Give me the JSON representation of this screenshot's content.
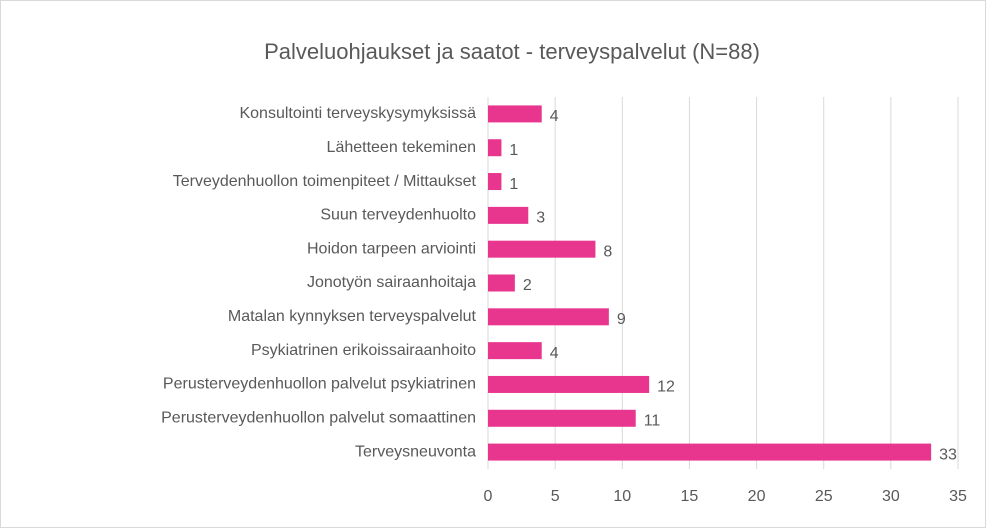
{
  "chart_data": {
    "type": "bar",
    "orientation": "horizontal",
    "title": "Palveluohjaukset ja saatot - terveyspalvelut (N=88)",
    "categories": [
      "Konsultointi terveyskysymyksissä",
      "Lähetteen tekeminen",
      "Terveydenhuollon toimenpiteet / Mittaukset",
      "Suun terveydenhuolto",
      "Hoidon tarpeen arviointi",
      "Jonotyön sairaanhoitaja",
      "Matalan kynnyksen terveyspalvelut",
      "Psykiatrinen erikoissairaanhoito",
      "Perusterveydenhuollon palvelut psykiatrinen",
      "Perusterveydenhuollon palvelut somaattinen",
      "Terveysneuvonta"
    ],
    "values": [
      4,
      1,
      1,
      3,
      8,
      2,
      9,
      4,
      12,
      11,
      33
    ],
    "color": "#e8368f",
    "xlim": [
      0,
      35
    ],
    "xticks": [
      0,
      5,
      10,
      15,
      20,
      25,
      30,
      35
    ],
    "grid": true
  }
}
